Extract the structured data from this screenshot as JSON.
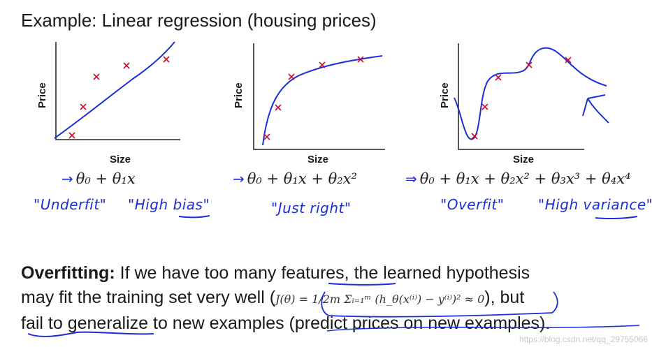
{
  "title": "Example: Linear regression (housing prices)",
  "plots": [
    {
      "ylabel": "Price",
      "xlabel": "Size",
      "hypothesis": "θ₀ + θ₁x",
      "arrow": "→",
      "annotations": [
        "\"Underfit\"",
        "\"High bias\""
      ]
    },
    {
      "ylabel": "Price",
      "xlabel": "Size",
      "hypothesis": "θ₀ + θ₁x + θ₂x²",
      "arrow": "→",
      "annotations": [
        "\"Just right\""
      ]
    },
    {
      "ylabel": "Price",
      "xlabel": "Size",
      "hypothesis": "θ₀ + θ₁x + θ₂x² + θ₃x³ + θ₄x⁴",
      "arrow": "⇒",
      "annotations": [
        "\"Overfit\"",
        "\"High variance\""
      ]
    }
  ],
  "paragraph": {
    "lead": "Overfitting:",
    "line1": " If we have too many features, the learned hypothesis",
    "line2_pre": "may fit the training set very well (",
    "formula": "J(θ) = 1/2m Σᵢ₌₁ᵐ (h_θ(x⁽ⁱ⁾) − y⁽ⁱ⁾)² ≈ 0",
    "line2_post": "), but",
    "line3": "fail to generalize to new examples (predict prices on new examples)."
  },
  "watermark": "https://blog.csdn.net/qq_29755066",
  "colors": {
    "curve": "#1a2fd6",
    "marker": "#c8102e",
    "axis": "#222222",
    "text": "#1a1a1a"
  }
}
